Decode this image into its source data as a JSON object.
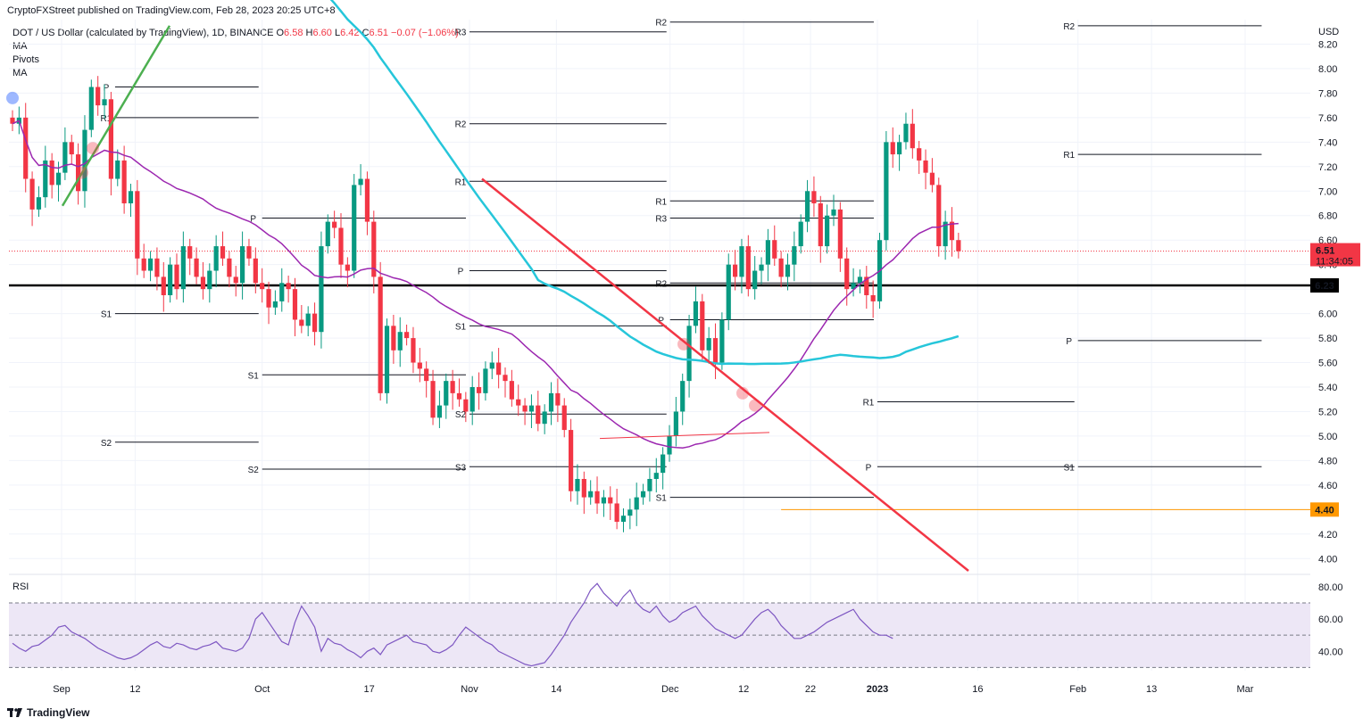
{
  "header": {
    "publisher": "CryptoFXStreet published on TradingView.com, Feb 28, 2023 20:25 UTC+8"
  },
  "legend": {
    "symbol": "DOT / US Dollar (calculated by TradingView), 1D, BINANCE",
    "o_label": "O",
    "o_value": "6.58",
    "h_label": "H",
    "h_value": "6.60",
    "l_label": "L",
    "l_value": "6.42",
    "c_label": "C",
    "c_value": "6.51",
    "change": "−0.07 (−1.06%)",
    "items": [
      "MA",
      "Pivots",
      "MA"
    ]
  },
  "rsi_label": "RSI",
  "footer": {
    "brand": "TradingView"
  },
  "colors": {
    "up": "#089981",
    "down": "#f23645",
    "ma_fast": "#9c27b0",
    "ma_slow": "#26c6da",
    "trend_down": "#f23645",
    "trend_up": "#4caf50",
    "support_orange": "#ff9800",
    "rsi": "#7e57c2",
    "rsi_band": "#ede7f6"
  },
  "chart_data": {
    "type": "candlestick",
    "title": "DOT / US Dollar (calculated by TradingView), 1D, BINANCE",
    "currency": "USD",
    "y_ticks": [
      "8.20",
      "8.00",
      "7.80",
      "7.60",
      "7.40",
      "7.20",
      "7.00",
      "6.80",
      "6.60",
      "6.40",
      "6.20",
      "6.00",
      "5.80",
      "5.60",
      "5.40",
      "5.20",
      "5.00",
      "4.80",
      "4.60",
      "4.40",
      "4.20",
      "4.00"
    ],
    "ylim": [
      3.9,
      8.4
    ],
    "x_ticks": [
      "Sep",
      "12",
      "Oct",
      "17",
      "Nov",
      "14",
      "Dec",
      "12",
      "22",
      "2023",
      "16",
      "Feb",
      "13",
      "Mar"
    ],
    "x_tick_days": [
      0,
      11,
      30,
      46,
      61,
      74,
      91,
      102,
      112,
      122,
      137,
      152,
      163,
      177
    ],
    "last_price": {
      "value": 6.51,
      "label": "6.51",
      "countdown": "11:34:05",
      "color": "#f23645"
    },
    "horizontal_levels": [
      {
        "value": 6.23,
        "label": "6.23",
        "color": "#000000"
      },
      {
        "value": 4.4,
        "label": "4.40",
        "color": "#ff9800"
      }
    ],
    "closes": [
      7.55,
      7.6,
      7.1,
      6.85,
      6.95,
      7.25,
      7.05,
      7.15,
      7.4,
      7.3,
      7.0,
      7.5,
      7.85,
      7.7,
      7.75,
      7.1,
      7.25,
      6.9,
      7.0,
      6.45,
      6.35,
      6.45,
      6.3,
      6.15,
      6.4,
      6.2,
      6.55,
      6.45,
      6.3,
      6.2,
      6.35,
      6.55,
      6.45,
      6.3,
      6.25,
      6.55,
      6.45,
      6.25,
      6.2,
      6.05,
      6.1,
      6.25,
      6.2,
      5.95,
      5.9,
      6.0,
      5.85,
      6.55,
      6.75,
      6.7,
      6.4,
      6.35,
      7.05,
      7.1,
      6.75,
      6.3,
      5.35,
      5.9,
      5.7,
      5.85,
      5.8,
      5.6,
      5.55,
      5.45,
      5.15,
      5.25,
      5.45,
      5.35,
      5.3,
      5.2,
      5.4,
      5.35,
      5.55,
      5.6,
      5.5,
      5.45,
      5.3,
      5.25,
      5.2,
      5.25,
      5.1,
      5.2,
      5.35,
      5.25,
      5.05,
      4.55,
      4.65,
      4.5,
      4.55,
      4.45,
      4.5,
      4.45,
      4.3,
      4.35,
      4.4,
      4.5,
      4.55,
      4.65,
      4.7,
      4.85,
      5.0,
      5.2,
      5.45,
      5.9,
      6.1,
      5.7,
      5.8,
      5.6,
      5.95,
      6.4,
      6.3,
      6.55,
      6.2,
      6.35,
      6.4,
      6.6,
      6.45,
      6.3,
      6.4,
      6.55,
      6.75,
      7.0,
      6.9,
      6.55,
      6.8,
      6.85,
      6.45,
      6.2,
      6.25,
      6.3,
      6.15,
      6.1,
      6.6,
      7.4,
      7.3,
      7.4,
      7.55,
      7.35,
      7.25,
      7.15,
      7.05,
      6.55,
      6.75,
      6.6,
      6.51
    ],
    "ma_fast_label": "MA",
    "ma_slow_label": "MA",
    "pivots": [
      {
        "label": "P",
        "value": 7.85
      },
      {
        "label": "R1",
        "value": 7.6
      },
      {
        "label": "S1",
        "value": 6.0
      },
      {
        "label": "S2",
        "value": 4.95
      },
      {
        "label": "P",
        "value": 6.78
      },
      {
        "label": "S1",
        "value": 5.5
      },
      {
        "label": "S2",
        "value": 4.73
      },
      {
        "label": "R3",
        "value": 8.3
      },
      {
        "label": "R2",
        "value": 7.55
      },
      {
        "label": "R1",
        "value": 7.08
      },
      {
        "label": "P",
        "value": 6.35
      },
      {
        "label": "S1",
        "value": 5.9
      },
      {
        "label": "S2",
        "value": 5.18
      },
      {
        "label": "S3",
        "value": 4.75
      },
      {
        "label": "R2",
        "value": 8.38
      },
      {
        "label": "R1",
        "value": 6.92
      },
      {
        "label": "R3",
        "value": 6.78
      },
      {
        "label": "R2",
        "value": 6.25
      },
      {
        "label": "P",
        "value": 5.95
      },
      {
        "label": "S1",
        "value": 4.5
      },
      {
        "label": "R1",
        "value": 5.28
      },
      {
        "label": "P",
        "value": 4.75
      },
      {
        "label": "R2",
        "value": 8.35
      },
      {
        "label": "R1",
        "value": 7.3
      },
      {
        "label": "P",
        "value": 5.78
      },
      {
        "label": "S1",
        "value": 4.75
      }
    ],
    "rsi": {
      "y_ticks": [
        "80.00",
        "60.00",
        "40.00"
      ],
      "ylim": [
        28,
        86
      ],
      "bands": [
        70,
        50,
        30
      ],
      "values": [
        45,
        42,
        40,
        43,
        44,
        47,
        50,
        55,
        56,
        52,
        50,
        48,
        45,
        42,
        40,
        38,
        36,
        35,
        36,
        38,
        41,
        44,
        46,
        43,
        42,
        45,
        44,
        42,
        41,
        43,
        44,
        46,
        42,
        41,
        40,
        42,
        48,
        60,
        64,
        58,
        52,
        46,
        44,
        58,
        68,
        62,
        55,
        40,
        48,
        45,
        44,
        41,
        39,
        36,
        40,
        42,
        38,
        44,
        46,
        48,
        50,
        46,
        45,
        44,
        40,
        39,
        41,
        44,
        50,
        55,
        52,
        49,
        46,
        44,
        40,
        38,
        36,
        34,
        32,
        31,
        32,
        33,
        38,
        44,
        50,
        58,
        64,
        70,
        78,
        82,
        76,
        72,
        68,
        74,
        78,
        70,
        66,
        64,
        68,
        62,
        58,
        60,
        64,
        66,
        68,
        62,
        58,
        54,
        52,
        50,
        48,
        50,
        55,
        60,
        64,
        66,
        62,
        56,
        52,
        48,
        48,
        50,
        52,
        55,
        58,
        60,
        62,
        64,
        66,
        60,
        56,
        52,
        50,
        50,
        48
      ]
    }
  }
}
